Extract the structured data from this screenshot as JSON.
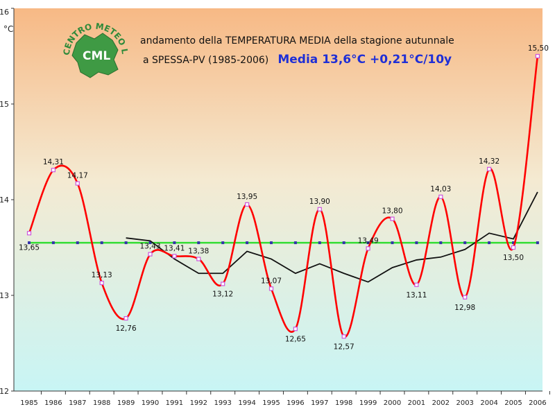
{
  "title_line1": "andamento della TEMPERATURA MEDIA della stagione autunnale",
  "title_line2": "a SPESSA-PV (1985-2006)",
  "title_accent": "Media 13,6°C +0,21°C/10y",
  "logo": {
    "arc_text": "CENTRO METEO LOMBARDO",
    "initials": "CML"
  },
  "colors": {
    "series_main": "#ff0000",
    "series_trend": "#111111",
    "series_mean": "#33dd33",
    "marker": "#cc55dd",
    "bg_top": "#f7b985",
    "bg_bottom": "#c8f5f5",
    "title_accent": "#1f2fd6"
  },
  "chart_data": {
    "type": "line",
    "title": "andamento della TEMPERATURA MEDIA della stagione autunnale a SPESSA-PV (1985-2006)",
    "subtitle": "Media 13,6°C +0,21°C/10y",
    "ylabel": "°C",
    "xlabel": "",
    "ylim": [
      12,
      16
    ],
    "yticks": [
      "12",
      "13",
      "14",
      "15",
      "16"
    ],
    "grid": false,
    "legend": "none",
    "categories": [
      "1985",
      "1986",
      "1987",
      "1988",
      "1989",
      "1990",
      "1991",
      "1992",
      "1993",
      "1994",
      "1995",
      "1996",
      "1997",
      "1998",
      "1999",
      "2000",
      "2001",
      "2002",
      "2003",
      "2004",
      "2005",
      "2006"
    ],
    "series": [
      {
        "values": [
          13.65,
          14.31,
          14.17,
          13.13,
          12.76,
          13.43,
          13.41,
          13.38,
          13.12,
          13.95,
          13.07,
          12.65,
          13.9,
          12.57,
          13.49,
          13.8,
          13.11,
          14.03,
          12.98,
          14.32,
          13.5,
          15.5
        ],
        "labels": [
          "13,65",
          "14,31",
          "14,17",
          "13,13",
          "12,76",
          "13,43",
          "13,41",
          "13,38",
          "13,12",
          "13,95",
          "13,07",
          "12,65",
          "13,90",
          "12,57",
          "13,49",
          "13,80",
          "13,11",
          "14,03",
          "12,98",
          "14,32",
          "13,50",
          "15,50"
        ]
      },
      {
        "values": [
          null,
          null,
          null,
          null,
          13.6,
          13.57,
          13.38,
          13.23,
          13.23,
          13.46,
          13.38,
          13.23,
          13.33,
          13.23,
          13.14,
          13.29,
          13.37,
          13.4,
          13.48,
          13.65,
          13.59,
          14.08
        ]
      },
      {
        "values": [
          13.55,
          13.55,
          13.55,
          13.55,
          13.55,
          13.55,
          13.55,
          13.55,
          13.55,
          13.55,
          13.55,
          13.55,
          13.55,
          13.55,
          13.55,
          13.55,
          13.55,
          13.55,
          13.55,
          13.55,
          13.55,
          13.55
        ]
      }
    ]
  }
}
